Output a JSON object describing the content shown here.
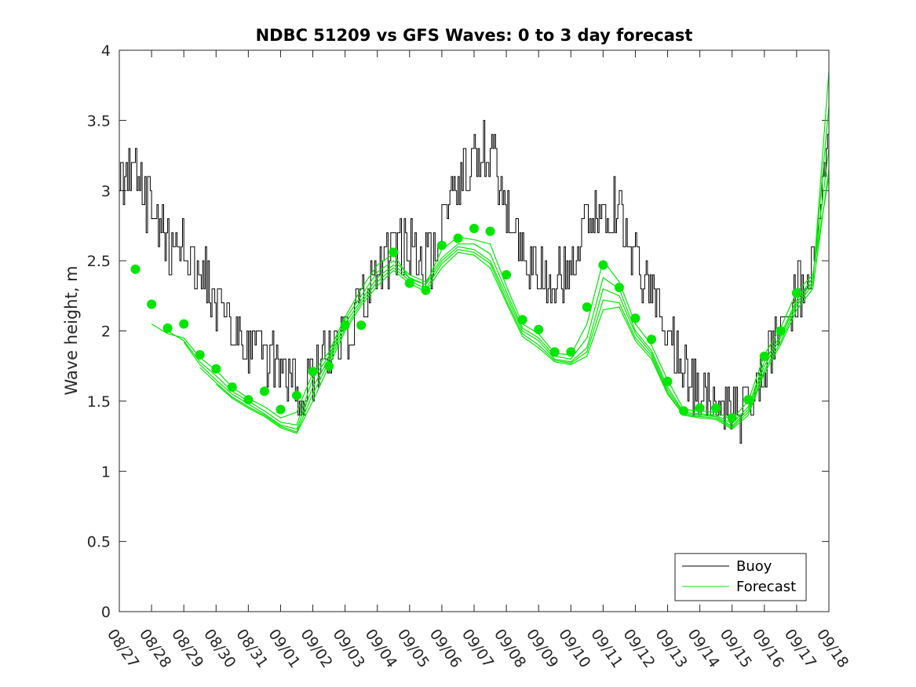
{
  "chart_data": {
    "type": "line",
    "title": "NDBC 51209 vs GFS Waves: 0 to 3 day forecast",
    "xlabel": "",
    "ylabel": "Wave height, m",
    "ylim": [
      0,
      4
    ],
    "yticks": [
      0,
      0.5,
      1,
      1.5,
      2,
      2.5,
      3,
      3.5,
      4
    ],
    "ytick_labels": [
      "0",
      "0.5",
      "1",
      "1.5",
      "2",
      "2.5",
      "3",
      "3.5",
      "4"
    ],
    "x_unit": "days since 08/27",
    "xlim": [
      0,
      22
    ],
    "xtick_labels": [
      "08/27",
      "08/28",
      "08/29",
      "08/30",
      "08/31",
      "09/01",
      "09/02",
      "09/03",
      "09/04",
      "09/05",
      "09/06",
      "09/07",
      "09/08",
      "09/09",
      "09/10",
      "09/11",
      "09/12",
      "09/13",
      "09/14",
      "09/15",
      "09/16",
      "09/17",
      "09/18"
    ],
    "legend": {
      "position": "bottom-right",
      "entries": [
        "Buoy",
        "Forecast"
      ]
    },
    "colors": {
      "buoy": "#000000",
      "forecast": "#00e600",
      "axis": "#262626"
    },
    "buoy_trend": {
      "x": [
        0,
        0.2,
        0.5,
        0.8,
        1.2,
        1.6,
        2.0,
        2.5,
        3.0,
        3.5,
        4.0,
        4.5,
        5.0,
        5.3,
        5.6,
        6.0,
        6.5,
        7.0,
        7.5,
        8.0,
        8.5,
        9.0,
        9.5,
        10.0,
        10.5,
        11.0,
        11.3,
        11.6,
        12.0,
        12.5,
        13.0,
        13.5,
        14.0,
        14.5,
        15.0,
        15.5,
        16.0,
        16.5,
        17.0,
        17.5,
        18.0,
        18.5,
        19.0,
        19.5,
        20.0,
        20.5,
        21.0,
        21.5,
        22.0
      ],
      "y": [
        3.05,
        3.15,
        3.1,
        2.95,
        2.75,
        2.6,
        2.6,
        2.45,
        2.2,
        2.05,
        1.85,
        1.8,
        1.8,
        1.65,
        1.6,
        1.7,
        1.85,
        2.0,
        2.2,
        2.35,
        2.65,
        2.6,
        2.45,
        2.7,
        3.1,
        3.2,
        3.35,
        3.2,
        2.85,
        2.55,
        2.4,
        2.35,
        2.5,
        2.75,
        2.9,
        2.85,
        2.5,
        2.25,
        2.0,
        1.75,
        1.55,
        1.45,
        1.4,
        1.5,
        1.75,
        2.1,
        2.3,
        2.45,
        3.4
      ]
    },
    "forecast_markers": {
      "x": [
        0.5,
        1.0,
        1.5,
        2.0,
        2.5,
        3.0,
        3.5,
        4.0,
        4.5,
        5.0,
        5.5,
        6.0,
        6.5,
        7.0,
        7.5,
        8.5,
        9.0,
        9.5,
        10.0,
        10.5,
        11.0,
        11.5,
        12.0,
        12.5,
        13.0,
        13.5,
        14.0,
        14.5,
        15.0,
        15.5,
        16.0,
        16.5,
        17.0,
        17.5,
        18.0,
        18.5,
        19.0,
        19.5,
        20.0,
        20.5,
        21.0
      ],
      "y": [
        2.44,
        2.19,
        2.02,
        2.05,
        1.83,
        1.73,
        1.6,
        1.51,
        1.57,
        1.44,
        1.54,
        1.71,
        1.75,
        2.04,
        2.04,
        2.56,
        2.34,
        2.29,
        2.61,
        2.66,
        2.73,
        2.71,
        2.4,
        2.08,
        2.01,
        1.85,
        1.85,
        2.17,
        2.47,
        2.31,
        2.09,
        1.94,
        1.64,
        1.43,
        1.45,
        1.45,
        1.38,
        1.51,
        1.82,
        2.0,
        2.27
      ]
    },
    "forecast_lines": [
      {
        "x": [
          1.0,
          1.5,
          2.0,
          2.5,
          3.0,
          3.5,
          4.0,
          4.5,
          5.0,
          5.5,
          6.0,
          6.5,
          7.0,
          7.5,
          8.0,
          8.5,
          9.0,
          9.5,
          10.0,
          10.5,
          11.0,
          11.5,
          12.0,
          12.5,
          13.0,
          13.5,
          14.0,
          14.5,
          15.0,
          15.5,
          16.0,
          16.5,
          17.0,
          17.5,
          18.0,
          18.5,
          19.0,
          19.5,
          20.0,
          20.5,
          21.0,
          21.5,
          22.0
        ],
        "y": [
          2.05,
          1.98,
          1.95,
          1.81,
          1.72,
          1.6,
          1.52,
          1.46,
          1.38,
          1.42,
          1.7,
          1.85,
          2.1,
          2.3,
          2.47,
          2.55,
          2.37,
          2.33,
          2.58,
          2.67,
          2.65,
          2.62,
          2.32,
          2.05,
          1.98,
          1.84,
          1.83,
          2.05,
          2.5,
          2.35,
          2.05,
          1.9,
          1.65,
          1.44,
          1.43,
          1.42,
          1.37,
          1.5,
          1.83,
          2.02,
          2.28,
          2.4,
          3.1
        ]
      },
      {
        "x": [
          1.5,
          2.0,
          2.5,
          3.0,
          3.5,
          4.0,
          4.5,
          5.0,
          5.5,
          6.0,
          6.5,
          7.0,
          7.5,
          8.0,
          8.5,
          9.0,
          9.5,
          10.0,
          10.5,
          11.0,
          11.5,
          12.0,
          12.5,
          13.0,
          13.5,
          14.0,
          14.5,
          15.0,
          15.5,
          16.0,
          16.5,
          17.0,
          17.5,
          18.0,
          18.5,
          19.0,
          19.5,
          20.0,
          20.5,
          21.0,
          21.5,
          22.0
        ],
        "y": [
          2.0,
          1.93,
          1.78,
          1.68,
          1.57,
          1.5,
          1.43,
          1.35,
          1.33,
          1.66,
          1.82,
          2.08,
          2.25,
          2.42,
          2.5,
          2.4,
          2.35,
          2.52,
          2.62,
          2.62,
          2.55,
          2.28,
          2.02,
          1.95,
          1.82,
          1.8,
          1.95,
          2.38,
          2.3,
          2.0,
          1.86,
          1.6,
          1.42,
          1.41,
          1.4,
          1.34,
          1.46,
          1.78,
          1.97,
          2.22,
          2.38,
          3.3
        ]
      },
      {
        "x": [
          2.0,
          2.5,
          3.0,
          3.5,
          4.0,
          4.5,
          5.0,
          5.5,
          6.0,
          6.5,
          7.0,
          7.5,
          8.0,
          8.5,
          9.0,
          9.5,
          10.0,
          10.5,
          11.0,
          11.5,
          12.0,
          12.5,
          13.0,
          13.5,
          14.0,
          14.5,
          15.0,
          15.5,
          16.0,
          16.5,
          17.0,
          17.5,
          18.0,
          18.5,
          19.0,
          19.5,
          20.0,
          20.5,
          21.0,
          21.5,
          22.0
        ],
        "y": [
          1.92,
          1.76,
          1.65,
          1.55,
          1.48,
          1.41,
          1.33,
          1.3,
          1.6,
          1.8,
          2.05,
          2.22,
          2.38,
          2.47,
          2.38,
          2.33,
          2.5,
          2.6,
          2.58,
          2.5,
          2.25,
          2.0,
          1.93,
          1.8,
          1.78,
          1.88,
          2.3,
          2.25,
          1.98,
          1.84,
          1.58,
          1.41,
          1.4,
          1.39,
          1.32,
          1.44,
          1.75,
          1.95,
          2.2,
          2.35,
          3.6
        ]
      },
      {
        "x": [
          2.5,
          3.0,
          3.5,
          4.0,
          4.5,
          5.0,
          5.5,
          6.0,
          6.5,
          7.0,
          7.5,
          8.0,
          8.5,
          9.0,
          9.5,
          10.0,
          10.5,
          11.0,
          11.5,
          12.0,
          12.5,
          13.0,
          13.5,
          14.0,
          14.5,
          15.0,
          15.5,
          16.0,
          16.5,
          17.0,
          17.5,
          18.0,
          18.5,
          19.0,
          19.5,
          20.0,
          20.5,
          21.0,
          21.5,
          22.0
        ],
        "y": [
          1.74,
          1.63,
          1.53,
          1.46,
          1.4,
          1.32,
          1.28,
          1.55,
          1.78,
          2.02,
          2.2,
          2.35,
          2.45,
          2.36,
          2.3,
          2.48,
          2.58,
          2.56,
          2.48,
          2.22,
          1.98,
          1.9,
          1.79,
          1.77,
          1.85,
          2.22,
          2.2,
          1.95,
          1.82,
          1.56,
          1.4,
          1.39,
          1.38,
          1.31,
          1.42,
          1.72,
          1.92,
          2.18,
          2.33,
          3.85
        ]
      },
      {
        "x": [
          3.0,
          3.5,
          4.0,
          4.5,
          5.0,
          5.5,
          6.0,
          6.5,
          7.0,
          7.5,
          8.0,
          8.5,
          9.0,
          9.5,
          10.0,
          10.5,
          11.0,
          11.5,
          12.0,
          12.5,
          13.0,
          13.5,
          14.0,
          14.5,
          15.0,
          15.5,
          16.0,
          16.5,
          17.0,
          17.5,
          18.0,
          18.5,
          19.0,
          19.5,
          20.0,
          20.5,
          21.0,
          21.5,
          22.0
        ],
        "y": [
          1.62,
          1.52,
          1.45,
          1.39,
          1.31,
          1.27,
          1.5,
          1.75,
          2.0,
          2.18,
          2.32,
          2.43,
          2.34,
          2.28,
          2.45,
          2.56,
          2.54,
          2.45,
          2.2,
          1.96,
          1.88,
          1.78,
          1.76,
          1.82,
          2.15,
          2.17,
          1.93,
          1.8,
          1.55,
          1.4,
          1.38,
          1.37,
          1.3,
          1.4,
          1.7,
          1.9,
          2.15,
          2.3,
          3.15
        ]
      }
    ]
  }
}
